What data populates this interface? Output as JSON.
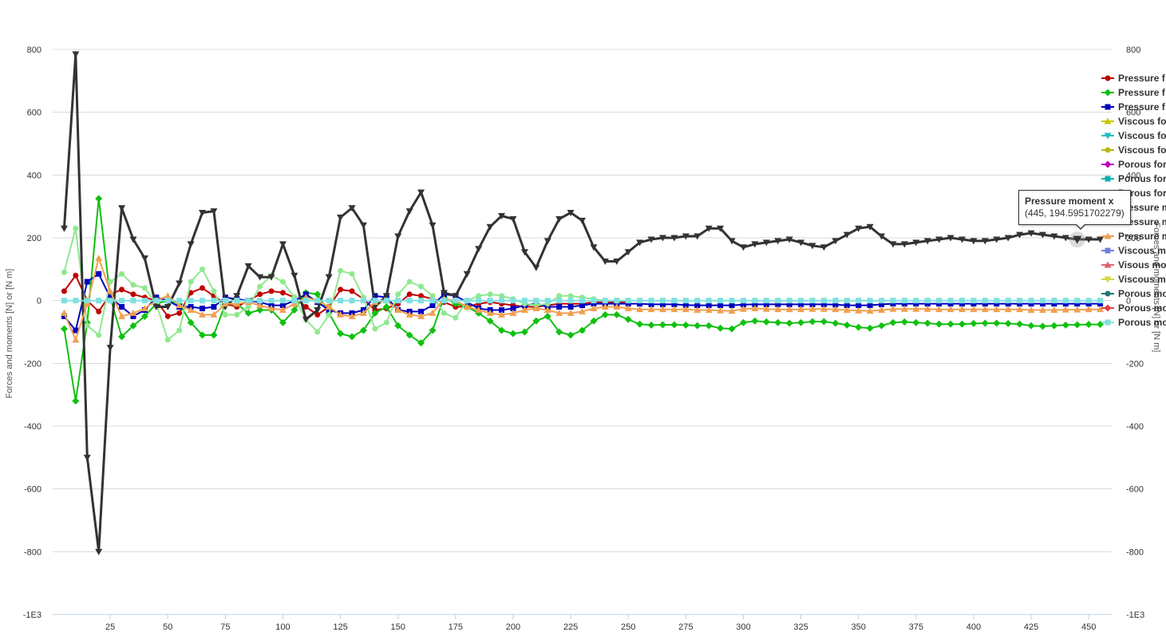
{
  "chart_data": {
    "type": "line",
    "ylabel": "Forces and moments [N] or [N m]",
    "ylabel_right": "Forces and moments [N] or [N m]",
    "ylim": [
      -1000,
      800
    ],
    "xlim": [
      0,
      460
    ],
    "y_ticks": [
      "800",
      "600",
      "400",
      "200",
      "0",
      "-200",
      "-400",
      "-600",
      "-800",
      "-1E3"
    ],
    "x_ticks": [
      "25",
      "50",
      "75",
      "100",
      "125",
      "150",
      "175",
      "200",
      "225",
      "250",
      "275",
      "300",
      "325",
      "350",
      "375",
      "400",
      "425",
      "450"
    ],
    "grid": "horizontal",
    "legend_position": "right",
    "series": [
      {
        "name": "Pressure f",
        "color": "#c00000",
        "marker": "circle",
        "x": [
          5,
          10,
          15,
          20,
          25,
          30,
          35,
          40,
          45,
          50,
          55,
          60,
          65,
          70,
          75,
          80,
          85,
          90,
          95,
          100,
          105,
          110,
          115,
          120,
          125,
          130,
          135,
          140,
          145,
          150,
          155,
          160,
          165,
          170,
          175,
          180,
          185,
          190,
          195,
          200,
          205,
          210,
          215,
          220,
          225,
          230,
          235,
          240,
          245,
          250
        ],
        "y": [
          30,
          80,
          0,
          -35,
          20,
          35,
          20,
          10,
          0,
          -50,
          -40,
          25,
          40,
          15,
          -10,
          -20,
          0,
          20,
          30,
          25,
          10,
          -20,
          -45,
          -20,
          35,
          30,
          5,
          -30,
          -25,
          -10,
          20,
          15,
          5,
          -5,
          -20,
          -20,
          -10,
          -5,
          -10,
          -15,
          -20,
          -20,
          -15,
          -10,
          -10,
          -10,
          -5,
          -5,
          -5,
          -5
        ]
      },
      {
        "name": "Pressure f",
        "color": "#10c010",
        "marker": "diamond",
        "x": [
          5,
          10,
          15,
          20,
          25,
          30,
          35,
          40,
          45,
          50,
          55,
          60,
          65,
          70,
          75,
          80,
          85,
          90,
          95,
          100,
          105,
          110,
          115,
          120,
          125,
          130,
          135,
          140,
          145,
          150,
          155,
          160,
          165,
          170,
          175,
          180,
          185,
          190,
          195,
          200,
          205,
          210,
          215,
          220,
          225,
          230,
          235,
          240,
          245,
          250,
          255,
          260,
          265,
          270,
          275,
          280,
          285,
          290,
          295,
          300,
          305,
          310,
          315,
          320,
          325,
          330,
          335,
          340,
          345,
          350,
          355,
          360,
          365,
          370,
          375,
          380,
          385,
          390,
          395,
          400,
          405,
          410,
          415,
          420,
          425,
          430,
          435,
          440,
          445,
          450,
          455
        ],
        "y": [
          -90,
          -320,
          -70,
          325,
          10,
          -115,
          -80,
          -50,
          -10,
          0,
          -10,
          -70,
          -110,
          -110,
          -10,
          -10,
          -40,
          -30,
          -30,
          -70,
          -30,
          25,
          20,
          -40,
          -105,
          -115,
          -95,
          -40,
          -20,
          -80,
          -110,
          -135,
          -95,
          10,
          -10,
          -20,
          -40,
          -65,
          -95,
          -105,
          -100,
          -65,
          -50,
          -100,
          -110,
          -95,
          -65,
          -45,
          -45,
          -60,
          -75,
          -78,
          -77,
          -77,
          -78,
          -80,
          -80,
          -88,
          -90,
          -70,
          -65,
          -68,
          -70,
          -72,
          -70,
          -67,
          -67,
          -72,
          -78,
          -85,
          -88,
          -80,
          -70,
          -68,
          -70,
          -72,
          -75,
          -75,
          -75,
          -73,
          -72,
          -72,
          -73,
          -75,
          -80,
          -82,
          -80,
          -78,
          -77,
          -76,
          -76
        ]
      },
      {
        "name": "Pressure f",
        "color": "#0000c0",
        "marker": "square",
        "x": [
          5,
          10,
          15,
          20,
          25,
          30,
          35,
          40,
          45,
          50,
          55,
          60,
          65,
          70,
          75,
          80,
          85,
          90,
          95,
          100,
          105,
          110,
          115,
          120,
          125,
          130,
          135,
          140,
          145,
          150,
          155,
          160,
          165,
          170,
          175,
          180,
          185,
          190,
          195,
          200,
          205,
          210,
          215,
          220,
          225,
          230,
          235,
          240,
          245,
          250,
          255,
          260,
          265,
          270,
          275,
          280,
          285,
          290,
          295,
          300,
          305,
          310,
          315,
          320,
          325,
          330,
          335,
          340,
          345,
          350,
          355,
          360,
          365,
          370,
          375,
          380,
          385,
          390,
          395,
          400,
          405,
          410,
          415,
          420,
          425,
          430,
          435,
          440,
          445,
          450,
          455
        ],
        "y": [
          -50,
          -95,
          60,
          85,
          10,
          -20,
          -50,
          -30,
          10,
          0,
          -20,
          -20,
          -25,
          -20,
          10,
          5,
          0,
          -5,
          -15,
          -15,
          0,
          20,
          -5,
          -30,
          -40,
          -40,
          -30,
          15,
          10,
          -30,
          -35,
          -35,
          -15,
          20,
          15,
          -5,
          -25,
          -30,
          -30,
          -25,
          -15,
          -10,
          -20,
          -20,
          -20,
          -15,
          -10,
          -10,
          -10,
          -10,
          -10,
          -12,
          -12,
          -12,
          -14,
          -15,
          -15,
          -15,
          -15,
          -13,
          -12,
          -12,
          -12,
          -12,
          -12,
          -12,
          -12,
          -13,
          -15,
          -15,
          -15,
          -12,
          -10,
          -10,
          -10,
          -10,
          -10,
          -10,
          -10,
          -10,
          -10,
          -10,
          -10,
          -10,
          -10,
          -10,
          -10,
          -10,
          -10,
          -10,
          -10
        ]
      },
      {
        "name": "Viscous fo",
        "color": "#c8c800",
        "marker": "triangle",
        "x": [],
        "y": []
      },
      {
        "name": "Viscous fo",
        "color": "#20c0c0",
        "marker": "triangle-down",
        "x": [],
        "y": []
      },
      {
        "name": "Viscous fo",
        "color": "#b8b810",
        "marker": "circle",
        "x": [],
        "y": []
      },
      {
        "name": "Porous for",
        "color": "#c000c0",
        "marker": "diamond",
        "x": [],
        "y": []
      },
      {
        "name": "Porous for",
        "color": "#10b0b0",
        "marker": "square",
        "x": [],
        "y": []
      },
      {
        "name": "Porous for",
        "color": "#90e890",
        "marker": "circle",
        "x": [
          5,
          10,
          15,
          20,
          25,
          30,
          35,
          40,
          45,
          50,
          55,
          60,
          65,
          70,
          75,
          80,
          85,
          90,
          95,
          100,
          105,
          110,
          115,
          120,
          125,
          130,
          135,
          140,
          145,
          150,
          155,
          160,
          165,
          170,
          175,
          180,
          185,
          190,
          195,
          200,
          205,
          210,
          215,
          220,
          225,
          230,
          235,
          240,
          245,
          250
        ],
        "y": [
          90,
          230,
          -80,
          -110,
          60,
          85,
          50,
          40,
          -10,
          -125,
          -95,
          60,
          100,
          30,
          -45,
          -45,
          -20,
          45,
          80,
          60,
          10,
          -60,
          -100,
          -45,
          95,
          85,
          10,
          -90,
          -70,
          20,
          60,
          45,
          15,
          -40,
          -55,
          0,
          15,
          20,
          15,
          5,
          -10,
          -15,
          -10,
          15,
          15,
          10,
          5,
          0,
          0,
          0
        ]
      },
      {
        "name": "Pressure m",
        "color": "#333333",
        "marker": "triangle-down",
        "x": [
          5,
          10,
          15,
          20,
          25,
          30,
          35,
          40,
          45,
          50,
          55,
          60,
          65,
          70,
          75,
          80,
          85,
          90,
          95,
          100,
          105,
          110,
          115,
          120,
          125,
          130,
          135,
          140,
          145,
          150,
          155,
          160,
          165,
          170,
          175,
          180,
          185,
          190,
          195,
          200,
          205,
          210,
          215,
          220,
          225,
          230,
          235,
          240,
          245,
          250,
          255,
          260,
          265,
          270,
          275,
          280,
          285,
          290,
          295,
          300,
          305,
          310,
          315,
          320,
          325,
          330,
          335,
          340,
          345,
          350,
          355,
          360,
          365,
          370,
          375,
          380,
          385,
          390,
          395,
          400,
          405,
          410,
          415,
          420,
          425,
          430,
          435,
          440,
          445,
          450,
          455
        ],
        "y": [
          230,
          785,
          -500,
          -800,
          -150,
          295,
          195,
          135,
          -20,
          -20,
          55,
          180,
          280,
          285,
          -20,
          15,
          110,
          75,
          75,
          180,
          80,
          -60,
          -30,
          75,
          265,
          295,
          240,
          -20,
          15,
          205,
          285,
          345,
          240,
          25,
          15,
          85,
          165,
          235,
          270,
          260,
          155,
          105,
          190,
          260,
          280,
          255,
          170,
          125,
          125,
          155,
          185,
          195,
          200,
          200,
          205,
          205,
          230,
          230,
          190,
          170,
          180,
          185,
          190,
          195,
          185,
          175,
          170,
          190,
          210,
          230,
          235,
          205,
          180,
          180,
          185,
          190,
          195,
          200,
          195,
          190,
          190,
          195,
          200,
          210,
          215,
          210,
          205,
          200,
          195,
          195,
          195
        ]
      },
      {
        "name": "Pressure m",
        "color": "#5a5aa0",
        "marker": "circle",
        "x": [],
        "y": []
      },
      {
        "name": "Pressure m",
        "color": "#f0a050",
        "marker": "triangle",
        "x": [
          5,
          10,
          15,
          20,
          25,
          30,
          35,
          40,
          45,
          50,
          55,
          60,
          65,
          70,
          75,
          80,
          85,
          90,
          95,
          100,
          105,
          110,
          115,
          120,
          125,
          130,
          135,
          140,
          145,
          150,
          155,
          160,
          165,
          170,
          175,
          180,
          185,
          190,
          195,
          200,
          205,
          210,
          215,
          220,
          225,
          230,
          235,
          240,
          245,
          250,
          255,
          260,
          265,
          270,
          275,
          280,
          285,
          290,
          295,
          300,
          305,
          310,
          315,
          320,
          325,
          330,
          335,
          340,
          345,
          350,
          355,
          360,
          365,
          370,
          375,
          380,
          385,
          390,
          395,
          400,
          405,
          410,
          415,
          420,
          425,
          430,
          435,
          440,
          445,
          450,
          455
        ],
        "y": [
          -40,
          -125,
          -10,
          135,
          30,
          -50,
          -40,
          -25,
          0,
          15,
          -15,
          -30,
          -45,
          -45,
          -10,
          -10,
          -5,
          -15,
          -25,
          -30,
          -10,
          10,
          0,
          -20,
          -45,
          -50,
          -40,
          -5,
          0,
          -30,
          -45,
          -50,
          -40,
          5,
          0,
          -20,
          -30,
          -40,
          -45,
          -40,
          -30,
          -25,
          -30,
          -40,
          -40,
          -35,
          -25,
          -20,
          -20,
          -25,
          -28,
          -28,
          -28,
          -28,
          -28,
          -30,
          -30,
          -32,
          -33,
          -27,
          -25,
          -27,
          -28,
          -28,
          -28,
          -27,
          -27,
          -28,
          -30,
          -32,
          -33,
          -30,
          -27,
          -27,
          -27,
          -27,
          -28,
          -28,
          -28,
          -28,
          -28,
          -28,
          -28,
          -28,
          -30,
          -30,
          -30,
          -29,
          -29,
          -28,
          -28
        ]
      },
      {
        "name": "Viscous mo",
        "color": "#7080e0",
        "marker": "square",
        "x": [],
        "y": []
      },
      {
        "name": "Visous mo",
        "color": "#e06070",
        "marker": "triangle",
        "x": [],
        "y": []
      },
      {
        "name": "Viscous m",
        "color": "#d8d840",
        "marker": "triangle-down",
        "x": [],
        "y": []
      },
      {
        "name": "Porous mo",
        "color": "#207878",
        "marker": "circle",
        "x": [],
        "y": []
      },
      {
        "name": "Porous mo",
        "color": "#e04040",
        "marker": "diamond",
        "x": [],
        "y": []
      },
      {
        "name": "Porous mo",
        "color": "#80e0e0",
        "marker": "square",
        "x": [
          5,
          10,
          15,
          20,
          25,
          30,
          35,
          40,
          45,
          50,
          55,
          60,
          65,
          70,
          75,
          80,
          85,
          90,
          95,
          100,
          105,
          110,
          115,
          120,
          125,
          130,
          135,
          140,
          145,
          150,
          155,
          160,
          165,
          170,
          175,
          180,
          185,
          190,
          195,
          200,
          205,
          210,
          215,
          220,
          225,
          230,
          235,
          240,
          245,
          250,
          255,
          260,
          265,
          270,
          275,
          280,
          285,
          290,
          295,
          300,
          305,
          310,
          315,
          320,
          325,
          330,
          335,
          340,
          345,
          350,
          355,
          360,
          365,
          370,
          375,
          380,
          385,
          390,
          395,
          400,
          405,
          410,
          415,
          420,
          425,
          430,
          435,
          440,
          445,
          450,
          455
        ],
        "y": [
          0,
          0,
          0,
          0,
          0,
          0,
          0,
          0,
          0,
          0,
          0,
          0,
          0,
          0,
          0,
          0,
          0,
          0,
          0,
          0,
          0,
          0,
          0,
          0,
          0,
          0,
          0,
          0,
          0,
          0,
          0,
          0,
          0,
          0,
          0,
          0,
          0,
          0,
          0,
          0,
          0,
          0,
          0,
          0,
          0,
          0,
          0,
          0,
          0,
          0,
          0,
          0,
          0,
          0,
          0,
          0,
          0,
          0,
          0,
          0,
          0,
          0,
          0,
          0,
          0,
          0,
          0,
          0,
          0,
          0,
          0,
          0,
          0,
          0,
          0,
          0,
          0,
          0,
          0,
          0,
          0,
          0,
          0,
          0,
          0,
          0,
          0,
          0,
          0,
          0,
          0
        ]
      }
    ],
    "tooltip": {
      "title": "Pressure moment x",
      "value": "(445, 194.5951702279)",
      "x": 445,
      "y": 194.6
    }
  }
}
